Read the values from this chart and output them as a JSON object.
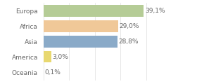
{
  "categories": [
    "Europa",
    "Africa",
    "Asia",
    "America",
    "Oceania"
  ],
  "values": [
    39.1,
    29.0,
    28.8,
    3.0,
    0.1
  ],
  "bar_colors": [
    "#b5cc96",
    "#f0c898",
    "#8aaac8",
    "#e8d870",
    "#cccccc"
  ],
  "labels": [
    "39,1%",
    "29,0%",
    "28,8%",
    "3,0%",
    "0,1%"
  ],
  "xlim": [
    0,
    46
  ],
  "background_color": "#ffffff",
  "bar_height": 0.75,
  "label_fontsize": 6.5,
  "tick_fontsize": 6.5,
  "grid_color": "#dddddd",
  "grid_linewidth": 0.5,
  "xticks": [
    0,
    10,
    20,
    30,
    40
  ]
}
